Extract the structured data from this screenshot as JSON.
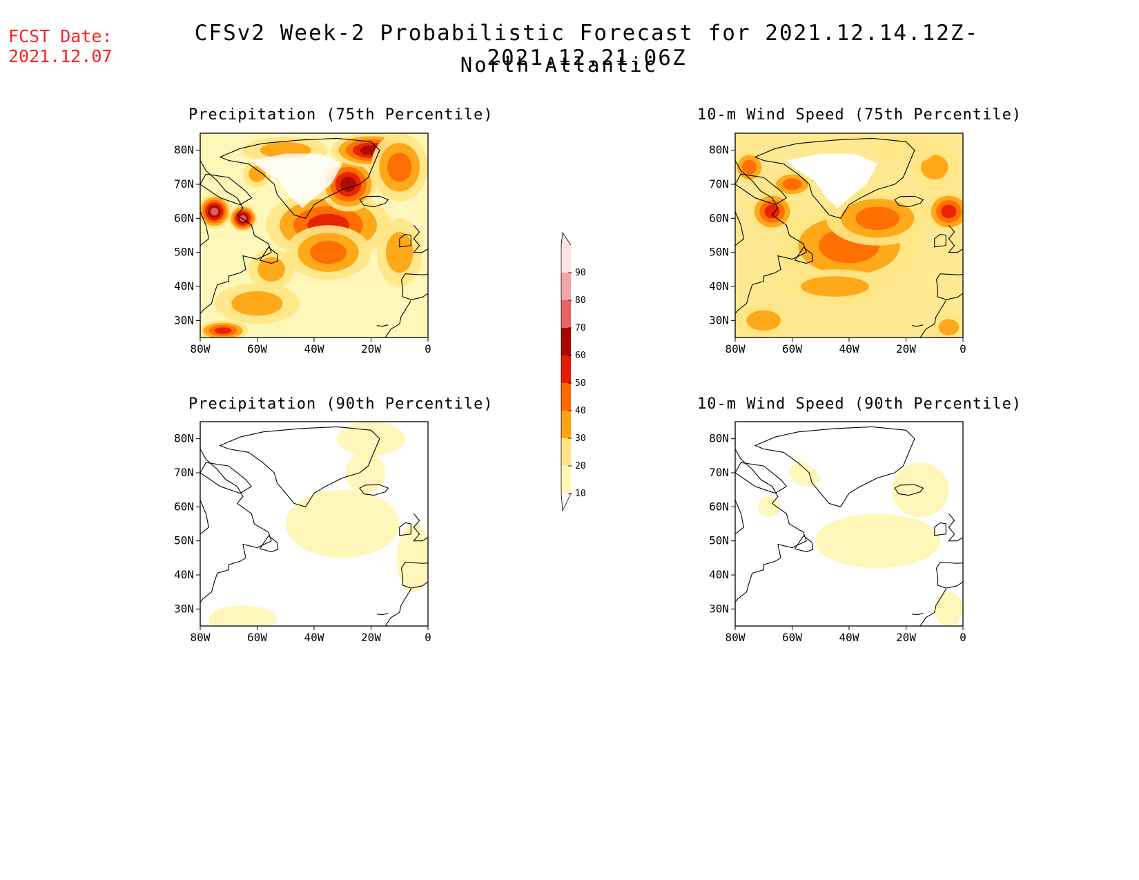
{
  "header": {
    "fcst_label": "FCST Date:",
    "fcst_date": "2021.12.07",
    "title": "CFSv2 Week-2 Probabilistic Forecast for 2021.12.14.12Z-2021.12.21.06Z",
    "region": "North Atlantic"
  },
  "colors": {
    "fcst_text": "#ff2020",
    "levels": [
      "#fff6b3",
      "#ffe586",
      "#ffa310",
      "#ff6a00",
      "#e61c00",
      "#a50a00",
      "#e56464",
      "#f4a5a5",
      "#fde2e6"
    ]
  },
  "panels": [
    {
      "title": "Precipitation (75th Percentile)",
      "intensity": 1.0
    },
    {
      "title": "10-m Wind Speed (75th Percentile)",
      "intensity": 0.85
    },
    {
      "title": "Precipitation (90th Percentile)",
      "intensity": 0.25
    },
    {
      "title": "10-m Wind Speed (90th Percentile)",
      "intensity": 0.3
    }
  ],
  "axes": {
    "lat_labels": [
      "80N",
      "70N",
      "60N",
      "50N",
      "40N",
      "30N"
    ],
    "lon_labels": [
      "80W",
      "60W",
      "40W",
      "20W",
      "0"
    ],
    "lon_range": [
      -80,
      0
    ],
    "lat_range": [
      25,
      85
    ]
  },
  "colorbar": {
    "labels": [
      "90",
      "80",
      "70",
      "60",
      "50",
      "40",
      "30",
      "20",
      "10"
    ]
  }
}
